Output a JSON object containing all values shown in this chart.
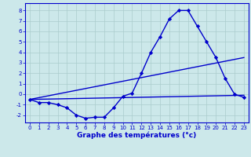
{
  "xlabel": "Graphe des températures (°c)",
  "line1": {
    "x": [
      0,
      1,
      2,
      3,
      4,
      5,
      6,
      7,
      8,
      9,
      10,
      11,
      12,
      13,
      14,
      15,
      16,
      17,
      18,
      19,
      20,
      21,
      22,
      23
    ],
    "y": [
      -0.5,
      -0.8,
      -0.8,
      -1.0,
      -1.3,
      -2.0,
      -2.3,
      -2.2,
      -2.2,
      -1.3,
      -0.2,
      0.1,
      2.0,
      4.0,
      5.5,
      7.2,
      8.0,
      8.0,
      6.5,
      5.0,
      3.5,
      1.5,
      0.0,
      -0.3
    ],
    "color": "#0000cc",
    "marker": "D",
    "markersize": 2.2,
    "linewidth": 1.0
  },
  "line2": {
    "x": [
      0,
      23
    ],
    "y": [
      -0.5,
      -0.1
    ],
    "color": "#0000cc",
    "linewidth": 1.0
  },
  "line3": {
    "x": [
      0,
      23
    ],
    "y": [
      -0.5,
      3.5
    ],
    "color": "#0000cc",
    "linewidth": 1.0
  },
  "background_color": "#cce8ea",
  "grid_color": "#aacccc",
  "line_color": "#0000cc",
  "xlim": [
    -0.5,
    23.5
  ],
  "ylim": [
    -2.7,
    8.7
  ],
  "yticks": [
    -2,
    -1,
    0,
    1,
    2,
    3,
    4,
    5,
    6,
    7,
    8
  ],
  "xticks": [
    0,
    1,
    2,
    3,
    4,
    5,
    6,
    7,
    8,
    9,
    10,
    11,
    12,
    13,
    14,
    15,
    16,
    17,
    18,
    19,
    20,
    21,
    22,
    23
  ],
  "tick_fontsize": 5.0,
  "xlabel_fontsize": 6.5
}
